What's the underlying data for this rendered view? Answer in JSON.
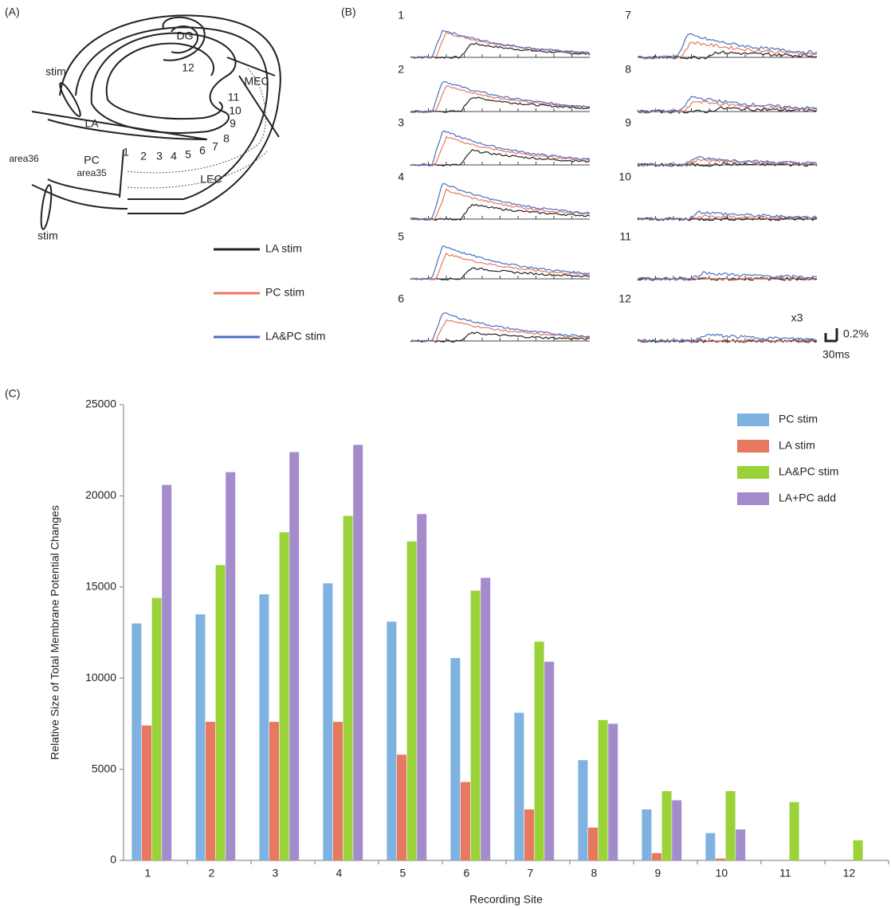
{
  "panel_a": {
    "label": "(A)",
    "labels": {
      "dg": "DG",
      "site12": "12",
      "stim_top": "stim",
      "la": "LA",
      "mec": "MEC",
      "site11": "11",
      "site10": "10",
      "site9": "9",
      "area36": "area36",
      "pc": "PC",
      "area35": "area35",
      "site1": "1",
      "site2": "2",
      "site3": "3",
      "site4": "4",
      "site5": "5",
      "site6": "6",
      "site7": "7",
      "site8": "8",
      "lec": "LEC",
      "stim_bottom": "stim"
    }
  },
  "panel_b": {
    "label": "(B)",
    "legend": [
      {
        "name": "LA stim",
        "color": "#222222"
      },
      {
        "name": "PC stim",
        "color": "#e8785f"
      },
      {
        "name": "LA&PC stim",
        "color": "#4a6fc4"
      }
    ],
    "site_labels": [
      "1",
      "2",
      "3",
      "4",
      "5",
      "6",
      "7",
      "8",
      "9",
      "10",
      "11",
      "12"
    ],
    "scale_gain": "x3",
    "scale_y": "0.2%",
    "scale_x": "30ms"
  },
  "panel_c_label": "(C)",
  "chart_data": {
    "type": "bar",
    "x_label": "Recording Site",
    "y_label": "Relative Size of Total Membrane Potential Changes",
    "categories": [
      "1",
      "2",
      "3",
      "4",
      "5",
      "6",
      "7",
      "8",
      "9",
      "10",
      "11",
      "12"
    ],
    "series": [
      {
        "name": "PC stim",
        "color": "#7fb2e0",
        "values": [
          13000,
          13500,
          14600,
          15200,
          13100,
          11100,
          8100,
          5500,
          2800,
          1500,
          0,
          0
        ]
      },
      {
        "name": "LA stim",
        "color": "#e8785f",
        "values": [
          7400,
          7600,
          7600,
          7600,
          5800,
          4300,
          2800,
          1800,
          400,
          100,
          0,
          0
        ]
      },
      {
        "name": "LA&PC stim",
        "color": "#9ad23a",
        "values": [
          14400,
          16200,
          18000,
          18900,
          17500,
          14800,
          12000,
          7700,
          3800,
          3800,
          3200,
          1100
        ]
      },
      {
        "name": "LA+PC add",
        "color": "#a38bcc",
        "values": [
          20600,
          21300,
          22400,
          22800,
          19000,
          15500,
          10900,
          7500,
          3300,
          1700,
          0,
          0
        ]
      }
    ],
    "ylim": [
      0,
      25000
    ],
    "yticks": [
      0,
      5000,
      10000,
      15000,
      20000,
      25000
    ],
    "legend": "top-right"
  }
}
